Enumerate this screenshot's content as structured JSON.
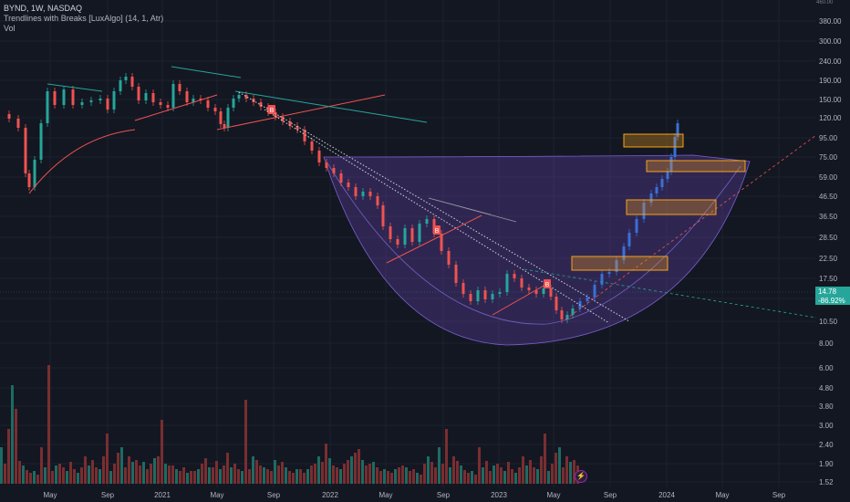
{
  "legend": {
    "symbol_line": "BYND, 1W, NASDAQ",
    "indicator_line": "Trendlines with Breaks [LuxAlgo] (14, 1, Atr)",
    "volume_line": "Vol"
  },
  "current_price": {
    "value": "14.78",
    "change": "-86.92%",
    "color": "#26a69a"
  },
  "top_partial_label": "460.00",
  "chart_data": {
    "type": "candlestick",
    "title": "BYND, 1W, NASDAQ",
    "yscale": "log",
    "y_ticks": [
      "380.00",
      "300.00",
      "240.00",
      "190.00",
      "150.00",
      "120.00",
      "95.00",
      "75.00",
      "59.00",
      "46.50",
      "36.50",
      "28.50",
      "22.50",
      "17.50",
      "14.00",
      "10.50",
      "8.00",
      "6.00",
      "4.80",
      "3.80",
      "3.00",
      "2.40",
      "1.90",
      "1.52"
    ],
    "x_ticks": [
      "May",
      "Sep",
      "2021",
      "May",
      "Sep",
      "2022",
      "May",
      "Sep",
      "2023",
      "May",
      "Sep",
      "2024",
      "May",
      "Sep"
    ],
    "breakout_markers": [
      "B",
      "B",
      "B",
      "B"
    ],
    "colors": {
      "up": "#26a69a",
      "down": "#ef5350",
      "cup_fill": "#6a4fb0",
      "box": "#f7a21b"
    },
    "series": [
      {
        "name": "Price",
        "description": "weekly candles, peak ~190 early 2021, decline to ~10 mid-2023, rally to ~120 early 2024"
      },
      {
        "name": "Vol",
        "description": "weekly volume bars"
      }
    ]
  }
}
